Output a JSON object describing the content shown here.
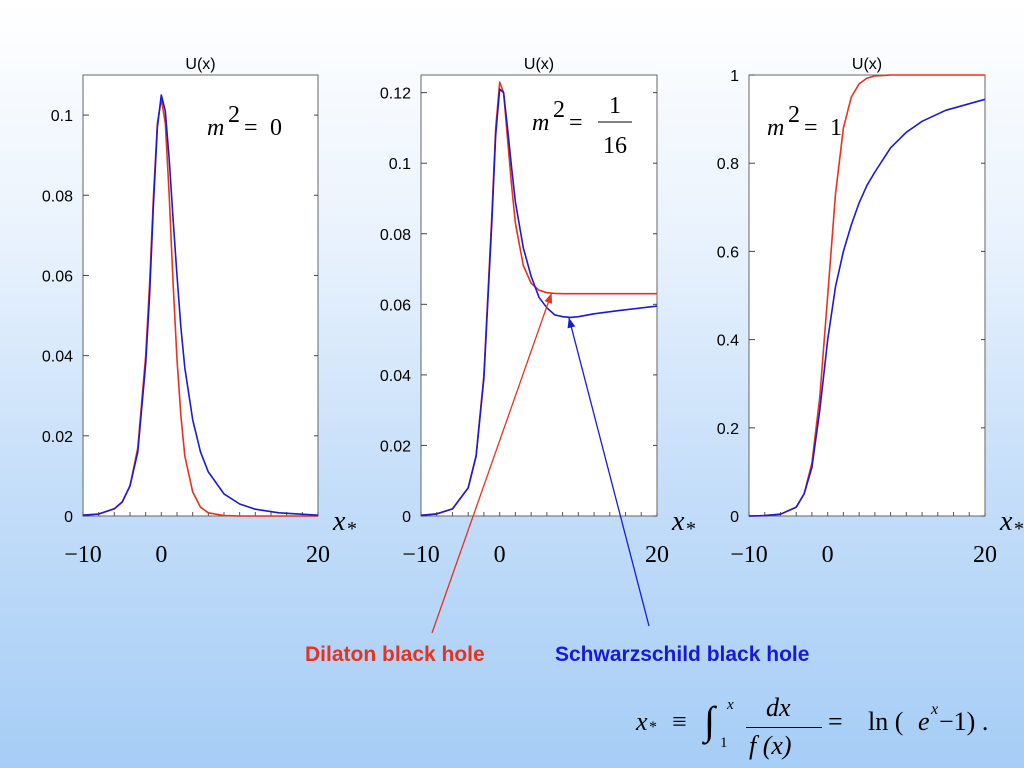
{
  "chart_data": [
    {
      "type": "line",
      "ylabel": "U(x)",
      "annotation": {
        "lhs": "m",
        "exp": "2",
        "rhs": "0"
      },
      "xlim": [
        -10,
        20
      ],
      "ylim": [
        0,
        0.11
      ],
      "xticks": [
        -10,
        0,
        20
      ],
      "xtick_labels": [
        "−10",
        "0",
        "20"
      ],
      "yticks": [
        0,
        0.02,
        0.04,
        0.06,
        0.08,
        0.1
      ],
      "ytick_labels": [
        "0",
        "0.02",
        "0.04",
        "0.06",
        "0.08",
        "0.1"
      ],
      "series": [
        {
          "color": "#e8321f",
          "x": [
            -10,
            -8,
            -6,
            -5,
            -4,
            -3,
            -2,
            -1.5,
            -1,
            -0.5,
            0,
            0.5,
            1,
            1.5,
            2,
            2.5,
            3,
            4,
            5,
            6,
            8,
            10,
            20
          ],
          "y": [
            0.0002,
            0.0005,
            0.0018,
            0.0035,
            0.0075,
            0.017,
            0.04,
            0.058,
            0.08,
            0.098,
            0.104,
            0.098,
            0.08,
            0.058,
            0.039,
            0.025,
            0.015,
            0.006,
            0.0022,
            0.0008,
            0.0001,
            0,
            0
          ]
        },
        {
          "color": "#1a1ad6",
          "x": [
            -10,
            -8,
            -6,
            -5,
            -4,
            -3,
            -2,
            -1.5,
            -1,
            -0.5,
            0,
            0.5,
            1,
            1.5,
            2,
            2.5,
            3,
            4,
            5,
            6,
            8,
            10,
            12,
            15,
            20
          ],
          "y": [
            0.0002,
            0.0005,
            0.0018,
            0.0035,
            0.0075,
            0.016,
            0.038,
            0.055,
            0.078,
            0.097,
            0.105,
            0.101,
            0.089,
            0.074,
            0.06,
            0.047,
            0.037,
            0.024,
            0.016,
            0.011,
            0.0055,
            0.003,
            0.0017,
            0.0008,
            0.0002
          ]
        }
      ]
    },
    {
      "type": "line",
      "ylabel": "U(x)",
      "annotation": {
        "lhs": "m",
        "exp": "2",
        "num": "1",
        "den": "16"
      },
      "xlim": [
        -10,
        20
      ],
      "ylim": [
        0,
        0.125
      ],
      "xticks": [
        -10,
        0,
        20
      ],
      "xtick_labels": [
        "−10",
        "0",
        "20"
      ],
      "yticks": [
        0,
        0.02,
        0.04,
        0.06,
        0.08,
        0.1,
        0.12
      ],
      "ytick_labels": [
        "0",
        "0.02",
        "0.04",
        "0.06",
        "0.08",
        "0.1",
        "0.12"
      ],
      "series": [
        {
          "color": "#e8321f",
          "x": [
            -10,
            -8,
            -6,
            -4,
            -3,
            -2,
            -1,
            -0.5,
            0,
            0.5,
            1,
            1.5,
            2,
            3,
            4,
            5,
            6,
            7,
            8,
            10,
            20
          ],
          "y": [
            0.0002,
            0.0006,
            0.002,
            0.008,
            0.017,
            0.04,
            0.085,
            0.11,
            0.123,
            0.12,
            0.107,
            0.094,
            0.083,
            0.071,
            0.066,
            0.064,
            0.0633,
            0.0631,
            0.063,
            0.063,
            0.063
          ]
        },
        {
          "color": "#1a1ad6",
          "x": [
            -10,
            -8,
            -6,
            -4,
            -3,
            -2,
            -1,
            -0.5,
            0,
            0.5,
            1,
            1.5,
            2,
            3,
            4,
            5,
            6,
            7,
            8,
            9,
            10,
            12,
            15,
            20
          ],
          "y": [
            0.0002,
            0.0006,
            0.002,
            0.008,
            0.017,
            0.039,
            0.083,
            0.108,
            0.121,
            0.12,
            0.11,
            0.099,
            0.089,
            0.076,
            0.068,
            0.062,
            0.059,
            0.057,
            0.0565,
            0.0563,
            0.0565,
            0.0573,
            0.0582,
            0.0595
          ]
        }
      ]
    },
    {
      "type": "line",
      "ylabel": "U(x)",
      "annotation": {
        "lhs": "m",
        "exp": "2",
        "rhs": "1"
      },
      "xlim": [
        -10,
        20
      ],
      "ylim": [
        0,
        1.0
      ],
      "xticks": [
        -10,
        0,
        20
      ],
      "xtick_labels": [
        "−10",
        "0",
        "20"
      ],
      "yticks": [
        0,
        0.2,
        0.4,
        0.6,
        0.8,
        1
      ],
      "ytick_labels": [
        "0",
        "0.2",
        "0.4",
        "0.6",
        "0.8",
        "1"
      ],
      "series": [
        {
          "color": "#e8321f",
          "x": [
            -10,
            -8,
            -6,
            -4,
            -3,
            -2,
            -1,
            0,
            1,
            2,
            3,
            4,
            5,
            6,
            8,
            10,
            20
          ],
          "y": [
            0,
            0.001,
            0.004,
            0.02,
            0.05,
            0.12,
            0.27,
            0.5,
            0.73,
            0.88,
            0.95,
            0.98,
            0.993,
            0.998,
            1,
            1,
            1
          ]
        },
        {
          "color": "#1a1ad6",
          "x": [
            -10,
            -8,
            -6,
            -4,
            -3,
            -2,
            -1,
            0,
            1,
            2,
            3,
            4,
            5,
            6,
            8,
            10,
            12,
            15,
            20
          ],
          "y": [
            0,
            0.001,
            0.004,
            0.02,
            0.05,
            0.11,
            0.24,
            0.4,
            0.52,
            0.6,
            0.66,
            0.71,
            0.75,
            0.78,
            0.835,
            0.87,
            0.895,
            0.92,
            0.945
          ]
        }
      ]
    }
  ],
  "x_axis_symbol": "x",
  "x_axis_subscript": "*",
  "legend": {
    "dilaton": {
      "label": "Dilaton black hole",
      "color": "#e8321f"
    },
    "schwarzschild": {
      "label": "Schwarzschild black hole",
      "color": "#1a1ad6"
    }
  },
  "formula": {
    "lhs": "x",
    "lhs_sub": "*",
    "equiv": "≡",
    "int_lower": "1",
    "int_upper": "x",
    "num": "dx",
    "den": "f (x)",
    "equals": "=",
    "rhs_ln": "ln (",
    "rhs_e": "e",
    "rhs_exp": "x",
    "rhs_tail": " −1) ."
  }
}
